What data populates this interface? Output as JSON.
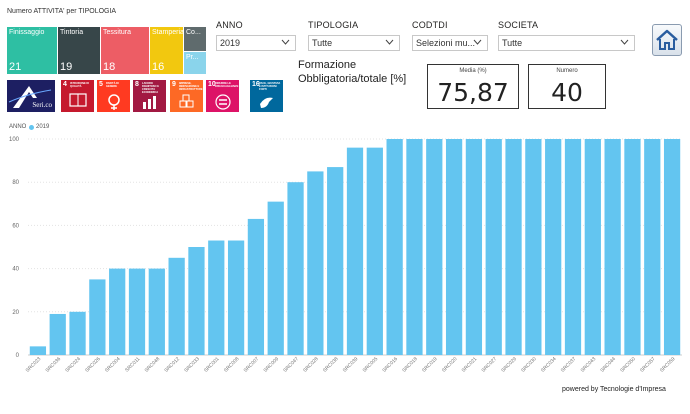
{
  "treemap": {
    "title": "Numero ATTIVITA' per TIPOLOGIA",
    "tiles": [
      {
        "name": "Finissaggio",
        "count": "21",
        "color": "#2ebfa3"
      },
      {
        "name": "Tintoria",
        "count": "19",
        "color": "#374649"
      },
      {
        "name": "Tessitura",
        "count": "18",
        "color": "#ed5d65"
      },
      {
        "name": "Stamperia",
        "count": "16",
        "color": "#f2c80f"
      },
      {
        "name": "Co...",
        "count": "",
        "color": "#5f6b6d"
      },
      {
        "name": "Pr...",
        "count": "",
        "color": "#8ad4eb"
      }
    ]
  },
  "logos": {
    "company": "Seri.co",
    "sdg": [
      {
        "num": "4",
        "text": "ISTRUZIONE DI QUALITÀ",
        "color": "#c5192d",
        "icon": "book-icon"
      },
      {
        "num": "5",
        "text": "PARITÀ DI GENERE",
        "color": "#ff3a21",
        "icon": "gender-icon"
      },
      {
        "num": "8",
        "text": "LAVORO DIGNITOSO E CRESCITA ECONOMICA",
        "color": "#a21942",
        "icon": "growth-icon"
      },
      {
        "num": "9",
        "text": "IMPRESE, INNOVAZIONE E INFRASTRUTTURE",
        "color": "#fd6925",
        "icon": "cubes-icon"
      },
      {
        "num": "10",
        "text": "RIDURRE LE DISUGUAGLIANZE",
        "color": "#dd1367",
        "icon": "equal-icon"
      },
      {
        "num": "16",
        "text": "PACE, GIUSTIZIA E ISTITUZIONI FORTI",
        "color": "#00689d",
        "icon": "dove-icon"
      }
    ]
  },
  "slicers": {
    "anno": {
      "label": "ANNO",
      "value": "2019"
    },
    "tipologia": {
      "label": "TIPOLOGIA",
      "value": "Tutte"
    },
    "codtdi": {
      "label": "CODTDI",
      "value": "Selezioni mu..."
    },
    "societa": {
      "label": "SOCIETA",
      "value": "Tutte"
    }
  },
  "kpi": {
    "title": "Formazione Obbligatoria/totale [%]",
    "media_label": "Media (%)",
    "media_value": "75,87",
    "numero_label": "Numero",
    "numero_value": "40"
  },
  "legend": {
    "title": "ANNO",
    "item": "2019",
    "color": "#63c5f0"
  },
  "chart_data": {
    "type": "bar",
    "categories": [
      "SRC023",
      "SRC036",
      "SRC024",
      "SRC026",
      "SRC004",
      "SRC011",
      "SRC048",
      "SRC012",
      "SRC033",
      "SRC001",
      "SRC008",
      "SRC007",
      "SRC009",
      "SRC047",
      "SRC028",
      "SRC038",
      "SRC039",
      "SRC005",
      "SRC016",
      "SRC018",
      "SRC019",
      "SRC020",
      "SRC021",
      "SRC027",
      "SRC029",
      "SRC030",
      "SRC034",
      "SRC037",
      "SRC043",
      "SRC044",
      "SRC050",
      "SRC057",
      "SRC059"
    ],
    "values": [
      4,
      19,
      20,
      35,
      40,
      40,
      40,
      45,
      50,
      53,
      53,
      63,
      71,
      80,
      85,
      87,
      96,
      96,
      100,
      100,
      100,
      100,
      100,
      100,
      100,
      100,
      100,
      100,
      100,
      100,
      100,
      100,
      100
    ],
    "ylim": [
      0,
      100
    ],
    "yticks": [
      0,
      20,
      40,
      60,
      80,
      100
    ],
    "grid": true,
    "color": "#63c5f0"
  },
  "footer": {
    "powered": "powered by Tecnologie d'Impresa"
  }
}
